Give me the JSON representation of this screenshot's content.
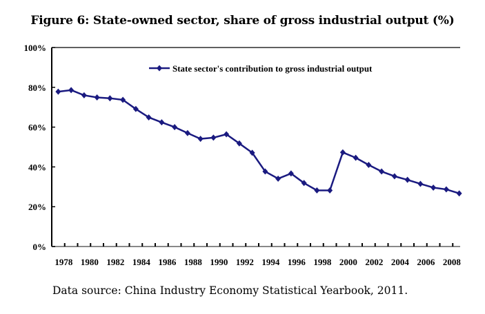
{
  "chart_data": {
    "type": "line",
    "title": "Figure 6: State-owned sector, share of gross industrial output (%)",
    "xlabel": "",
    "ylabel": "",
    "x": [
      1978,
      1979,
      1980,
      1981,
      1982,
      1983,
      1984,
      1985,
      1986,
      1987,
      1988,
      1989,
      1990,
      1991,
      1992,
      1993,
      1994,
      1995,
      1996,
      1997,
      1998,
      1999,
      2000,
      2001,
      2002,
      2003,
      2004,
      2005,
      2006,
      2007,
      2008,
      2009
    ],
    "x_tick_labels": [
      "1978",
      "1980",
      "1982",
      "1984",
      "1986",
      "1988",
      "1990",
      "1992",
      "1994",
      "1996",
      "1998",
      "2000",
      "2002",
      "2004",
      "2006",
      "2008"
    ],
    "y_tick_labels": [
      "0%",
      "20%",
      "40%",
      "60%",
      "80%",
      "100%"
    ],
    "y_ticks": [
      0,
      20,
      40,
      60,
      80,
      100
    ],
    "ylim": [
      0,
      100
    ],
    "grid": false,
    "legend_position": "top-center",
    "series": [
      {
        "name": "State sector's contribution to gross industrial output",
        "color": "#1a1a80",
        "marker": "diamond",
        "values": [
          77.8,
          78.6,
          76.0,
          74.9,
          74.5,
          73.7,
          69.1,
          64.9,
          62.4,
          60.0,
          57.0,
          54.1,
          54.7,
          56.4,
          51.8,
          47.1,
          37.7,
          34.1,
          36.7,
          31.9,
          28.2,
          28.2,
          47.3,
          44.6,
          41.0,
          37.7,
          35.3,
          33.5,
          31.5,
          29.6,
          28.7,
          26.7
        ]
      }
    ]
  },
  "footnote": "Data source: China Industry Economy Statistical Yearbook, 2011."
}
